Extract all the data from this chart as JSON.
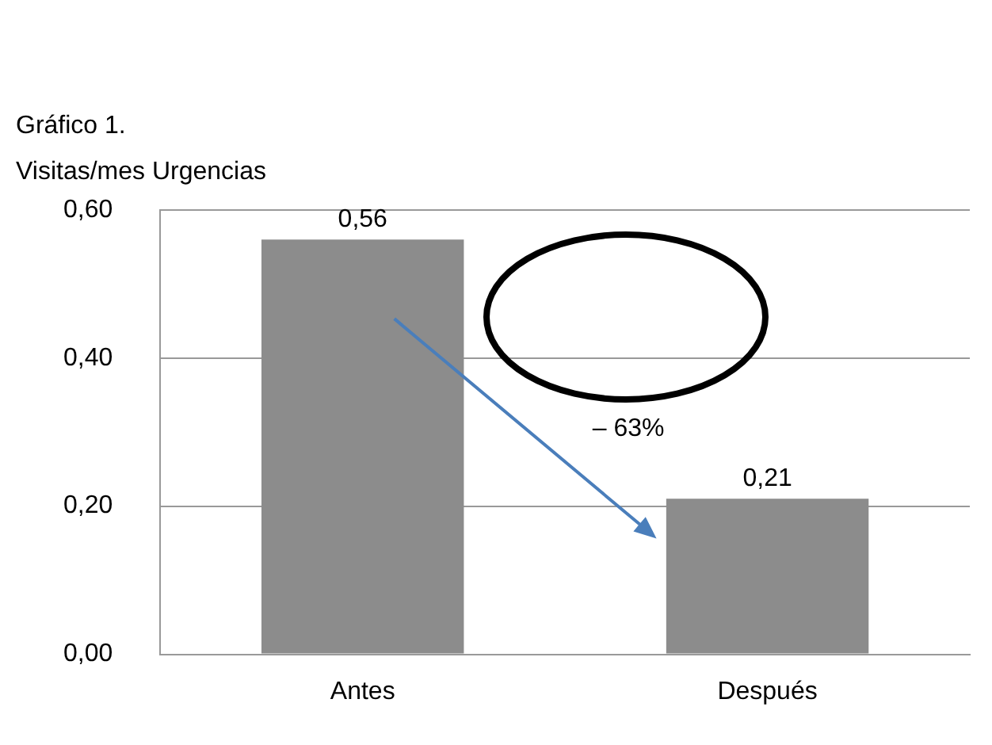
{
  "chart_data": {
    "type": "bar",
    "title": "Gráfico 1.",
    "subtitle": "Visitas/mes Urgencias",
    "categories": [
      "Antes",
      "Después"
    ],
    "values": [
      0.56,
      0.21
    ],
    "color": "#8c8c8c",
    "value_labels": [
      "0,56",
      "0,21"
    ],
    "ylim": [
      0,
      0.6
    ],
    "yticks": [
      {
        "value": 0,
        "label": "0,00"
      },
      {
        "value": 0.2,
        "label": "0,20"
      },
      {
        "value": 0.4,
        "label": "0,40"
      },
      {
        "value": 0.6,
        "label": "0,60"
      }
    ],
    "grid": "y",
    "legend": false,
    "annotations": [
      "– 63%"
    ]
  }
}
